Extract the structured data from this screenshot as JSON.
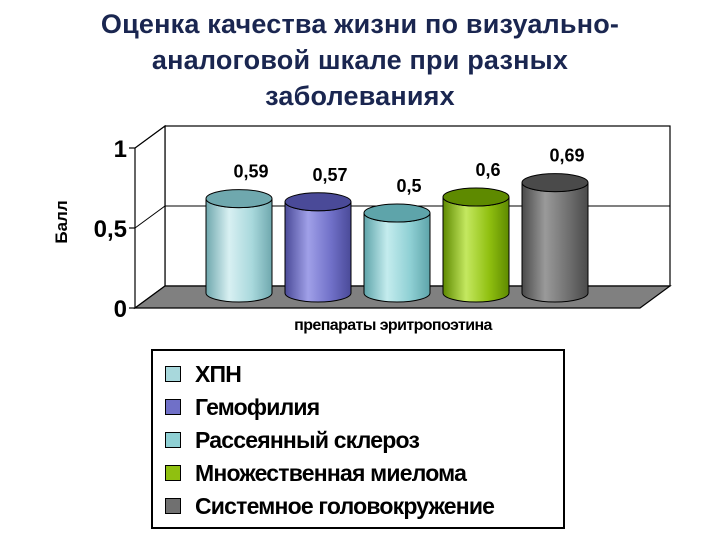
{
  "title_lines": [
    "Оценка качества жизни по визуально-",
    "аналоговой шкале при разных",
    "заболеваниях"
  ],
  "colors": {
    "title": "#1a2650",
    "grid": "#000000",
    "wall": "#ffffff",
    "floor": "#808080"
  },
  "chart_data": {
    "type": "bar",
    "bar_shape": "3d-cylinder",
    "title": "Оценка качества жизни по визуально-аналоговой шкале при разных заболеваниях",
    "xlabel": "препараты эритропоэтина",
    "ylabel": "Балл",
    "ylim": [
      0,
      1
    ],
    "yticks": [
      {
        "value": 0,
        "label": "0"
      },
      {
        "value": 0.5,
        "label": "0,5"
      },
      {
        "value": 1,
        "label": "1"
      }
    ],
    "grid": true,
    "legend_position": "bottom",
    "series": [
      {
        "name": "ХПН",
        "value": 0.59,
        "label": "0,59",
        "color": "#a8d8dc",
        "dark": "#6fa8ae",
        "light": "#d8f0f2"
      },
      {
        "name": "Гемофилия",
        "value": 0.57,
        "label": "0,57",
        "color": "#7070c8",
        "dark": "#4a4a98",
        "light": "#a0a0e8"
      },
      {
        "name": "Рассеянный склероз",
        "value": 0.5,
        "label": "0,5",
        "color": "#8fd0d4",
        "dark": "#5ea4aa",
        "light": "#c4ecee"
      },
      {
        "name": "Множественная миелома",
        "value": 0.6,
        "label": "0,6",
        "color": "#90c010",
        "dark": "#5e8a00",
        "light": "#c4e860"
      },
      {
        "name": "Системное головокружение",
        "value": 0.69,
        "label": "0,69",
        "color": "#707070",
        "dark": "#4a4a4a",
        "light": "#9a9a9a"
      }
    ]
  }
}
